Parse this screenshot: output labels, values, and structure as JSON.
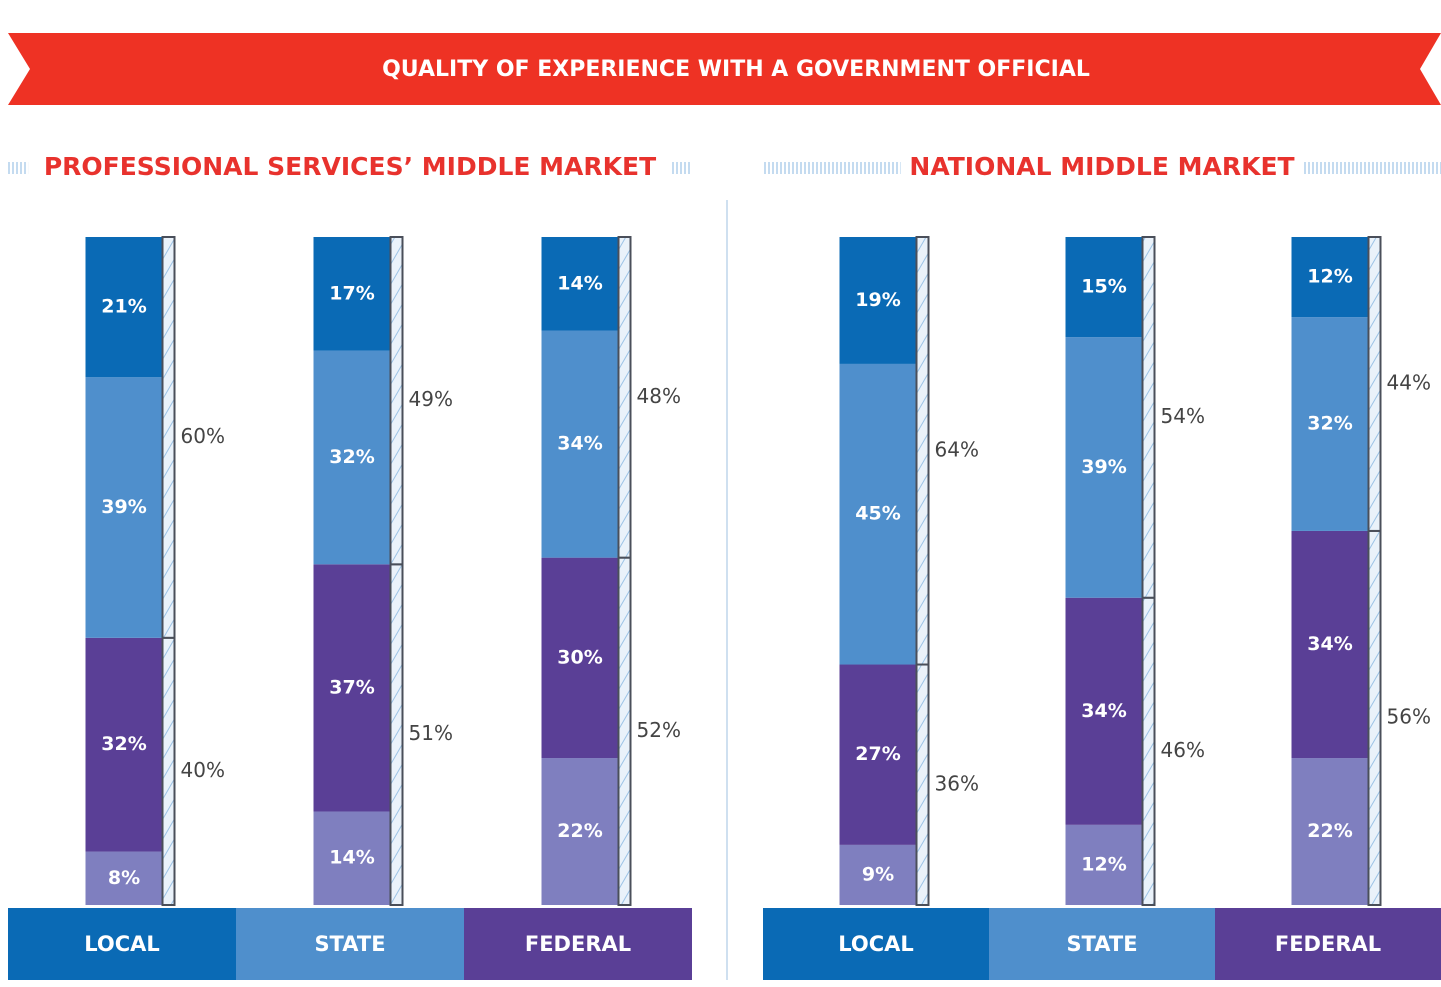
{
  "title": "QUALITY OF EXPERIENCE WITH A GOVERNMENT OFFICIAL",
  "chart_data": [
    {
      "type": "bar",
      "stacked": true,
      "title": "PROFESSIONAL SERVICES’ MIDDLE MARKET",
      "categories": [
        "LOCAL",
        "STATE",
        "FEDERAL"
      ],
      "category_colors": [
        "#0a6ab5",
        "#4f8fcc",
        "#5a3f96"
      ],
      "series": [
        {
          "color": "#7f7fbf",
          "values": [
            8,
            14,
            22
          ],
          "value_labels": [
            "8%",
            "14%",
            "22%"
          ]
        },
        {
          "color": "#5a3f96",
          "values": [
            32,
            37,
            30
          ],
          "value_labels": [
            "32%",
            "37%",
            "30%"
          ]
        },
        {
          "color": "#4f8fcc",
          "values": [
            39,
            32,
            34
          ],
          "value_labels": [
            "39%",
            "32%",
            "34%"
          ]
        },
        {
          "color": "#0a6ab5",
          "values": [
            21,
            17,
            14
          ],
          "value_labels": [
            "21%",
            "17%",
            "14%"
          ]
        }
      ],
      "totals": [
        {
          "values": [
            40,
            51,
            52
          ],
          "value_labels": [
            "40%",
            "51%",
            "52%"
          ]
        },
        {
          "values": [
            60,
            49,
            48
          ],
          "value_labels": [
            "60%",
            "49%",
            "48%"
          ]
        }
      ]
    },
    {
      "type": "bar",
      "stacked": true,
      "title": "NATIONAL MIDDLE MARKET",
      "categories": [
        "LOCAL",
        "STATE",
        "FEDERAL"
      ],
      "category_colors": [
        "#0a6ab5",
        "#4f8fcc",
        "#5a3f96"
      ],
      "series": [
        {
          "color": "#7f7fbf",
          "values": [
            9,
            12,
            22
          ],
          "value_labels": [
            "9%",
            "12%",
            "22%"
          ]
        },
        {
          "color": "#5a3f96",
          "values": [
            27,
            34,
            34
          ],
          "value_labels": [
            "27%",
            "34%",
            "34%"
          ]
        },
        {
          "color": "#4f8fcc",
          "values": [
            45,
            39,
            32
          ],
          "value_labels": [
            "45%",
            "39%",
            "32%"
          ]
        },
        {
          "color": "#0a6ab5",
          "values": [
            19,
            15,
            12
          ],
          "value_labels": [
            "19%",
            "15%",
            "12%"
          ]
        }
      ],
      "totals": [
        {
          "values": [
            36,
            46,
            56
          ],
          "value_labels": [
            "36%",
            "46%",
            "56%"
          ]
        },
        {
          "values": [
            64,
            54,
            44
          ],
          "value_labels": [
            "64%",
            "54%",
            "44%"
          ]
        }
      ]
    }
  ]
}
